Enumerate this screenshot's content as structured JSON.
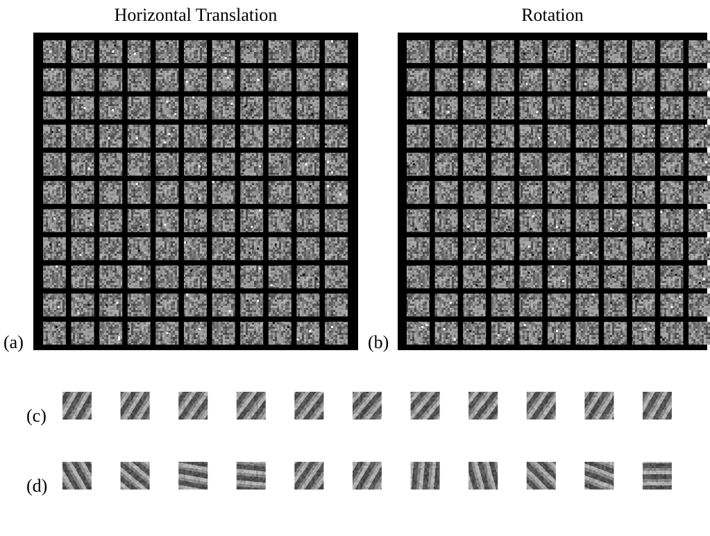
{
  "panels": [
    {
      "label": "(a)",
      "title": "Horizontal Translation"
    },
    {
      "label": "(b)",
      "title": "Rotation"
    }
  ],
  "rows": [
    {
      "label": "(c)"
    },
    {
      "label": "(d)"
    }
  ]
}
